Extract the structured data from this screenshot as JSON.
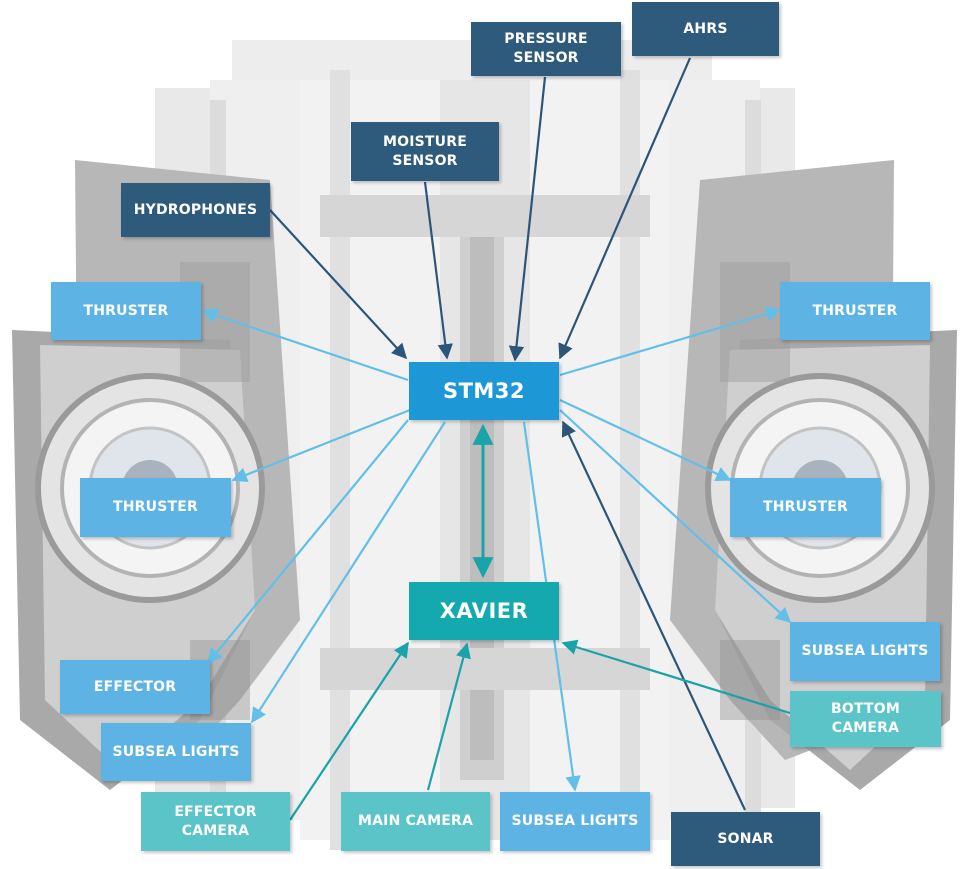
{
  "colors": {
    "dark_node": "#2e5a7c",
    "light_node": "#5db4e4",
    "teal_node": "#5bc4c8",
    "stm32_node": "#1d97d6",
    "xavier_node": "#13a9ae",
    "dark_arrow": "#2d5577",
    "light_arrow": "#62bfe8",
    "teal_arrow": "#1aa3a8"
  },
  "nodes": {
    "stm32": "STM32",
    "xavier": "XAVIER",
    "pressure_sensor": "PRESSURE\nSENSOR",
    "ahrs": "AHRS",
    "moisture_sensor": "MOISTURE\nSENSOR",
    "hydrophones": "HYDROPHONES",
    "thruster_top_left": "THRUSTER",
    "thruster_top_right": "THRUSTER",
    "thruster_mid_left": "THRUSTER",
    "thruster_mid_right": "THRUSTER",
    "subsea_lights_right": "SUBSEA LIGHTS",
    "bottom_camera": "BOTTOM\nCAMERA",
    "effector": "EFFECTOR",
    "subsea_lights_left": "SUBSEA LIGHTS",
    "effector_camera": "EFFECTOR\nCAMERA",
    "main_camera": "MAIN CAMERA",
    "subsea_lights_bottom": "SUBSEA LIGHTS",
    "sonar": "SONAR"
  }
}
